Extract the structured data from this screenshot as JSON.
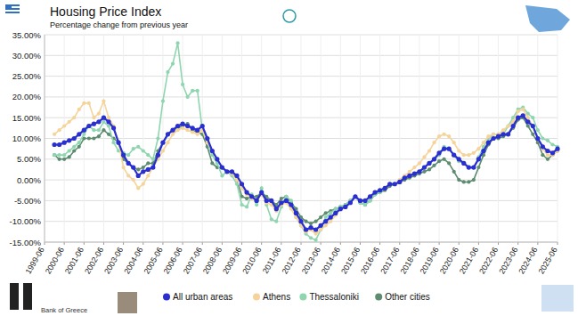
{
  "chart_data": {
    "type": "line",
    "title": "Housing Price Index",
    "subtitle": "Percentage change from previous year",
    "source": "Bank of Greece",
    "categories": [
      "1999-06",
      null,
      null,
      null,
      "2000-06",
      null,
      null,
      null,
      "2001-06",
      null,
      null,
      null,
      "2002-06",
      null,
      null,
      null,
      "2003-06",
      null,
      null,
      null,
      "2004-06",
      null,
      null,
      null,
      "2005-06",
      null,
      null,
      null,
      "2006-06",
      null,
      null,
      null,
      "2007-06",
      null,
      null,
      null,
      "2008-06",
      null,
      null,
      null,
      "2009-06",
      null,
      null,
      null,
      "2010-06",
      null,
      null,
      null,
      "2011-06",
      null,
      null,
      null,
      "2012-06",
      null,
      null,
      null,
      "2013-06",
      null,
      null,
      null,
      "2014-06",
      null,
      null,
      null,
      "2015-06",
      null,
      null,
      null,
      "2016-06",
      null,
      null,
      null,
      "2017-06",
      null,
      null,
      null,
      "2018-06",
      null,
      null,
      null,
      "2019-06",
      null,
      null,
      null,
      "2020-06",
      null,
      null,
      null,
      "2021-06",
      null,
      null,
      null,
      "2022-06",
      null,
      null,
      null,
      "2023-06",
      null,
      null,
      null,
      "2024-06",
      null,
      null,
      null,
      "2025-06"
    ],
    "series": [
      {
        "name": "All urban areas",
        "color": "#2a2fd0",
        "marker": "circle",
        "values": [
          null,
          null,
          8.5,
          8.5,
          9,
          9.5,
          10,
          11,
          12,
          13,
          13.5,
          14,
          15,
          14,
          12.5,
          9,
          6,
          4,
          3,
          1,
          2,
          2.5,
          3,
          6,
          9,
          11,
          12,
          13,
          13.5,
          13,
          12.5,
          12,
          13,
          10,
          7,
          5,
          3,
          2,
          2,
          1,
          -1,
          -3,
          -4,
          -5,
          -3,
          -5,
          -5,
          -7,
          -5.5,
          -5,
          -6,
          -8,
          -10,
          -12,
          -11.5,
          -12,
          -11,
          -10,
          -9,
          -8,
          -7,
          -6.5,
          -5.5,
          -4,
          -5,
          -5,
          -4,
          -3,
          -2.5,
          -2,
          -1,
          -1,
          -0.5,
          0.5,
          1,
          1.5,
          2,
          3,
          4,
          5,
          6.5,
          7.5,
          7.5,
          6,
          5,
          4,
          3,
          3,
          5,
          7,
          9,
          10,
          10.5,
          11,
          11,
          13,
          15,
          15.5,
          14,
          13,
          10,
          8,
          7,
          6.5,
          7.5
        ]
      },
      {
        "name": "Athens",
        "color": "#f5d49b",
        "marker": "circle",
        "values": [
          null,
          null,
          11,
          12,
          13,
          14,
          15,
          17,
          18.5,
          18.5,
          15,
          16,
          19,
          15,
          13,
          9,
          3,
          1,
          0,
          -2,
          -1,
          1,
          3,
          5,
          7,
          9,
          11,
          12,
          12.5,
          12,
          11.5,
          11,
          12,
          9,
          7,
          5,
          3,
          2,
          1.5,
          0,
          -2,
          -3.5,
          -4.5,
          -5,
          -3.5,
          -5.5,
          -6,
          -7.5,
          -6,
          -5.5,
          -7,
          -9,
          -11,
          -12.5,
          -12,
          -13,
          -12,
          -11,
          -10,
          -8.5,
          -7,
          -6.5,
          -5.5,
          -4,
          -5,
          -5,
          -4,
          -3,
          -2.5,
          -2,
          -1,
          -1,
          0,
          1,
          2,
          3,
          4,
          5.5,
          7,
          9,
          10.5,
          11,
          10.5,
          9,
          7,
          6,
          6,
          6.5,
          7.5,
          9,
          10.5,
          11,
          11,
          12,
          13,
          14,
          16.5,
          17,
          15,
          13,
          10,
          7.5,
          6,
          6,
          7
        ]
      },
      {
        "name": "Thessaloniki",
        "color": "#8fd6b0",
        "marker": "circle",
        "values": [
          null,
          null,
          6,
          6,
          6,
          7,
          8,
          9,
          11,
          13,
          12,
          12,
          14,
          13,
          9,
          7,
          6.5,
          6,
          7.5,
          8,
          7,
          6,
          5,
          10,
          19,
          26,
          28,
          33,
          23,
          20,
          21.5,
          21.5,
          12,
          9,
          6,
          4,
          1,
          2,
          1,
          -1,
          -6,
          -6.5,
          -3.5,
          -6,
          -2,
          -6,
          -9.5,
          -10,
          -6.5,
          -4,
          -5,
          -9,
          -11,
          -13,
          -14,
          -14.5,
          -12,
          -9,
          -8,
          -7,
          -6.5,
          -6,
          -5,
          -4,
          -5.5,
          -6,
          -5,
          -3.5,
          -3,
          -2,
          -1,
          -1,
          -0.5,
          0.5,
          1,
          1.5,
          2,
          3,
          4,
          5,
          6,
          8,
          7.5,
          6,
          4.5,
          4,
          3,
          3,
          5.5,
          8,
          10,
          11,
          11,
          11,
          13,
          15,
          17,
          17.5,
          16,
          15,
          12,
          10,
          9.5,
          8.5,
          8
        ]
      },
      {
        "name": "Other cities",
        "color": "#5e8c70",
        "marker": "circle",
        "values": [
          null,
          null,
          6,
          5,
          5,
          5.5,
          7,
          8,
          10,
          10,
          10,
          10.5,
          12,
          11,
          10,
          9,
          5,
          4,
          3,
          2.5,
          3,
          4,
          4,
          7,
          9,
          11,
          12,
          12.5,
          13,
          13.5,
          12,
          11.5,
          11,
          8,
          4,
          3,
          3,
          2,
          2,
          0,
          -4,
          -4.5,
          -4,
          -4,
          -3,
          -4,
          -5,
          -6,
          -4.5,
          -4,
          -5.5,
          -7,
          -9,
          -10,
          -10.5,
          -10,
          -9,
          -8,
          -7.5,
          -7,
          -6.5,
          -6,
          -5,
          -4,
          -5.5,
          -6,
          -5,
          -3.5,
          -3,
          -2.5,
          -1.5,
          -1,
          -0.5,
          0,
          0.5,
          1,
          1.5,
          2,
          2.5,
          3.5,
          4.5,
          5,
          4,
          2,
          0,
          -0.5,
          -0.5,
          0,
          3,
          6,
          8.5,
          10,
          10,
          10.5,
          11,
          12.5,
          14.5,
          15,
          13,
          11,
          9,
          6,
          5,
          6,
          7
        ]
      }
    ],
    "ylim": [
      -15,
      35
    ],
    "yticks": [
      {
        "value": -15,
        "label": "-15.00%"
      },
      {
        "value": -10,
        "label": "-10.00%"
      },
      {
        "value": -5,
        "label": "-5.00%"
      },
      {
        "value": 0,
        "label": "0.00%"
      },
      {
        "value": 5,
        "label": "5.00%"
      },
      {
        "value": 10,
        "label": "10.00%"
      },
      {
        "value": 15,
        "label": "15.00%"
      },
      {
        "value": 20,
        "label": "20.00%"
      },
      {
        "value": 25,
        "label": "25.00%"
      },
      {
        "value": 30,
        "label": "30.00%"
      },
      {
        "value": 35,
        "label": "35.00%"
      }
    ],
    "grid": true,
    "legend": "bottom"
  }
}
